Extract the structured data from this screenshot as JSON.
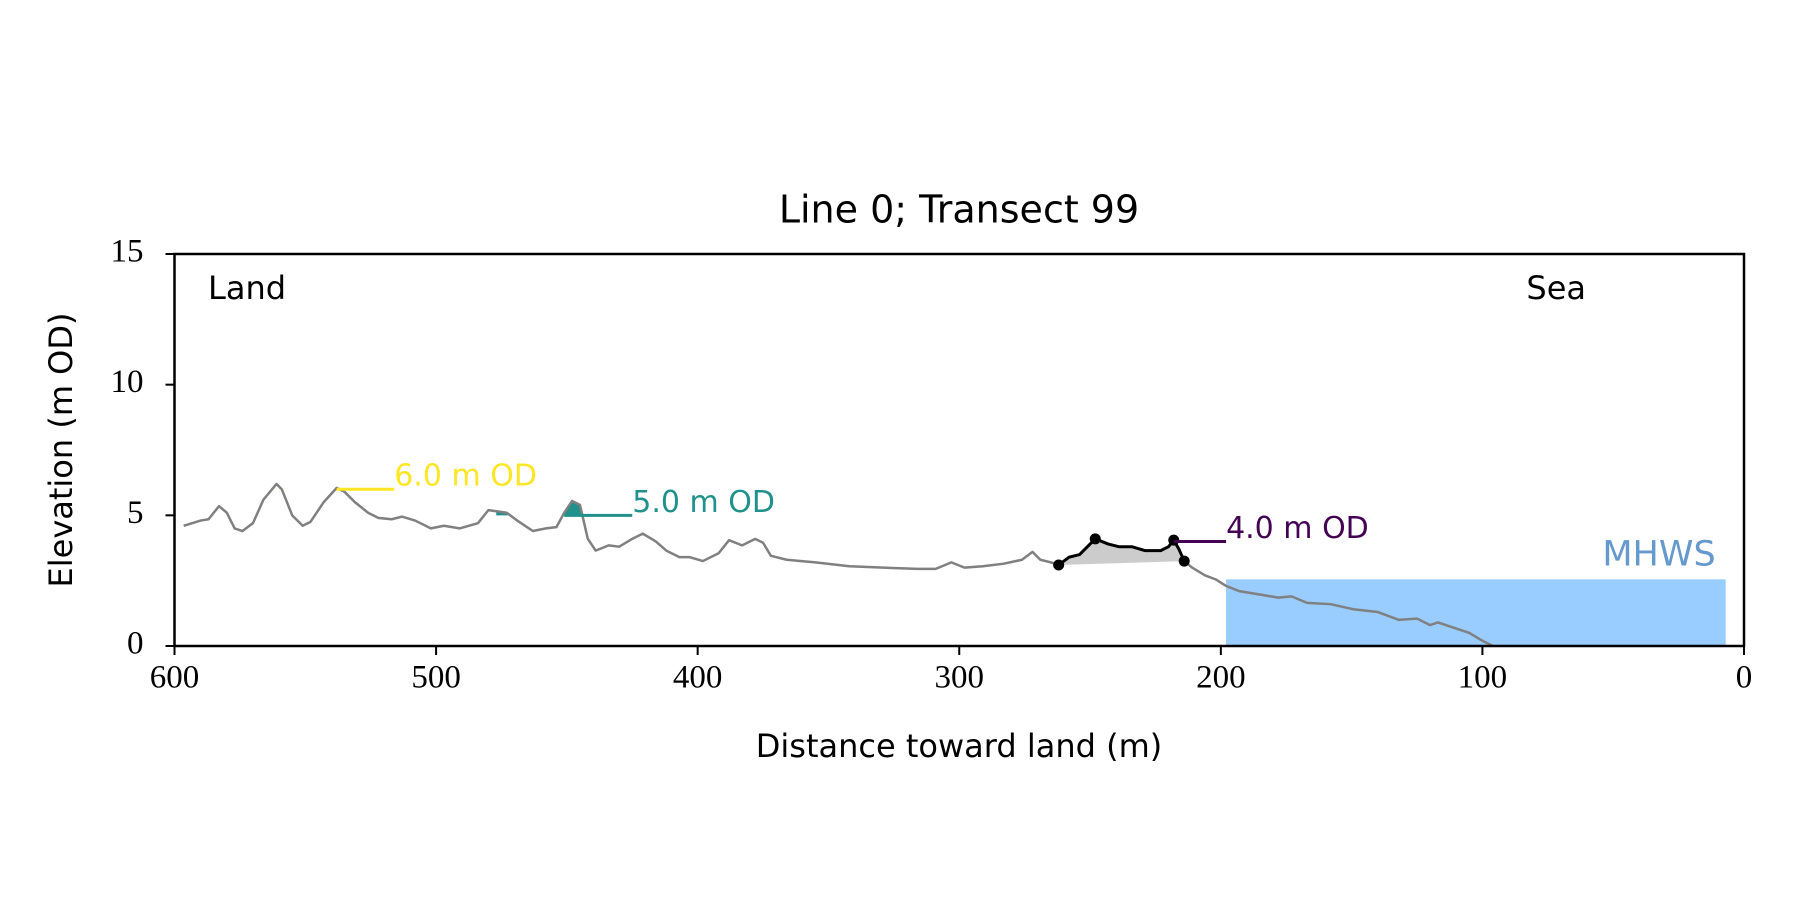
{
  "chart_data": {
    "type": "line",
    "title": "Line 0; Transect 99",
    "x_label": "Distance toward land (m)",
    "y_label": "Elevation (m OD)",
    "xlim": [
      600,
      0
    ],
    "ylim": [
      0,
      15
    ],
    "xticks": [
      600,
      500,
      400,
      300,
      200,
      100,
      0
    ],
    "yticks": [
      0,
      5,
      10,
      15
    ],
    "land_label": "Land",
    "sea_label": "Sea",
    "series": [
      {
        "color": "#808080",
        "x": [
          596.5,
          590,
          587,
          583,
          580,
          577,
          574,
          570,
          566,
          561,
          559,
          555,
          551,
          548,
          543,
          538,
          535,
          531,
          526,
          522,
          517,
          513,
          508,
          502,
          497,
          491,
          484,
          480,
          473,
          469,
          463,
          458,
          454,
          451,
          448,
          445,
          442,
          439,
          434,
          430,
          425,
          421,
          416,
          412,
          407,
          403,
          398,
          392,
          388,
          383,
          378,
          375,
          372,
          366,
          355,
          342,
          329,
          316,
          309,
          303,
          298,
          291,
          283,
          276,
          272,
          269,
          265,
          262,
          258,
          254,
          251,
          248,
          243,
          239,
          234,
          229,
          223,
          220,
          218,
          216,
          214,
          211,
          206,
          202,
          198,
          193,
          184,
          178,
          173,
          167,
          158,
          149,
          140,
          132,
          125,
          120,
          117,
          111,
          105,
          100,
          96
        ],
        "values": [
          4.6,
          4.8,
          4.85,
          5.35,
          5.1,
          4.5,
          4.4,
          4.7,
          5.6,
          6.2,
          6.0,
          5.0,
          4.6,
          4.75,
          5.5,
          6.05,
          5.9,
          5.5,
          5.1,
          4.9,
          4.85,
          4.95,
          4.8,
          4.5,
          4.6,
          4.5,
          4.7,
          5.2,
          5.1,
          4.8,
          4.4,
          4.5,
          4.55,
          5.1,
          5.55,
          5.4,
          4.1,
          3.65,
          3.85,
          3.8,
          4.1,
          4.3,
          4.0,
          3.65,
          3.4,
          3.4,
          3.25,
          3.55,
          4.05,
          3.85,
          4.1,
          3.95,
          3.45,
          3.3,
          3.2,
          3.05,
          3.0,
          2.95,
          2.95,
          3.2,
          3.0,
          3.05,
          3.15,
          3.3,
          3.6,
          3.3,
          3.2,
          3.1,
          3.4,
          3.5,
          3.8,
          4.1,
          3.9,
          3.8,
          3.8,
          3.65,
          3.65,
          3.8,
          4.05,
          3.7,
          3.25,
          3.0,
          2.7,
          2.55,
          2.3,
          2.1,
          1.95,
          1.85,
          1.9,
          1.65,
          1.6,
          1.4,
          1.3,
          1.0,
          1.05,
          0.8,
          0.9,
          0.7,
          0.5,
          0.2,
          0.0
        ]
      },
      {
        "color": "#000000",
        "x": [
          262,
          258,
          254,
          251,
          248,
          243,
          239,
          234,
          229,
          223,
          220,
          218,
          216,
          214
        ],
        "values": [
          3.1,
          3.4,
          3.5,
          3.8,
          4.1,
          3.9,
          3.8,
          3.8,
          3.65,
          3.65,
          3.8,
          4.05,
          3.7,
          3.25
        ],
        "fill": "#cccccc"
      }
    ],
    "points": {
      "color": "#000000",
      "x": [
        262,
        248,
        218,
        214
      ],
      "values": [
        3.1,
        4.1,
        4.05,
        3.25
      ]
    },
    "levels": [
      {
        "label": "6.0 m OD",
        "value": 6.0,
        "x": [
          538,
          516
        ],
        "color": "#fde725"
      },
      {
        "label": "5.0 m OD",
        "value": 5.0,
        "x": [
          451,
          425
        ],
        "color": "#21918c"
      },
      {
        "label": "4.0 m OD",
        "value": 4.0,
        "x": [
          218,
          198
        ],
        "color": "#440154"
      }
    ],
    "mhws": {
      "label": "MHWS",
      "value": 2.55,
      "x": [
        198,
        7
      ],
      "color": "#99ccff",
      "text_color": "#6699cc"
    }
  }
}
